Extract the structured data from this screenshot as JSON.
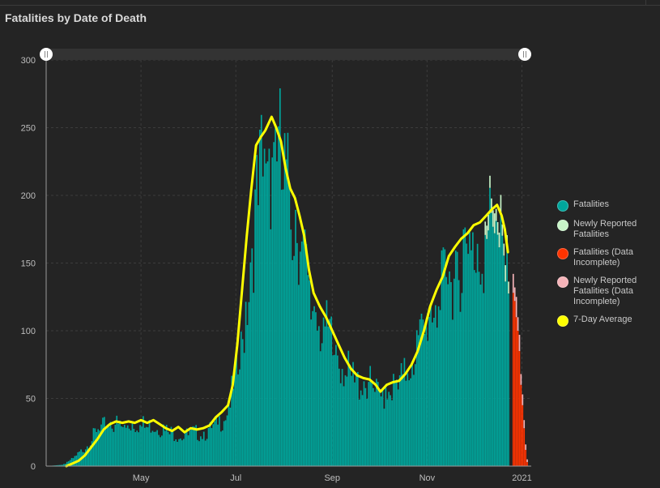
{
  "title": "Fatalities by Date of Death",
  "colors": {
    "fatalities": "#00a69c",
    "newly_reported": "#c8f5c8",
    "incomplete": "#ff3300",
    "newly_reported_incomplete": "#f5b3b8",
    "average": "#ffff00"
  },
  "legend": [
    {
      "label": "Fatalities",
      "color": "#00a69c"
    },
    {
      "label": "Newly Reported Fatalities",
      "color": "#c8f5c8"
    },
    {
      "label": "Fatalities (Data Incomplete)",
      "color": "#ff3300"
    },
    {
      "label": "Newly Reported Fatalities (Data Incomplete)",
      "color": "#f5b3b8"
    },
    {
      "label": "7-Day Average",
      "color": "#ffff00"
    }
  ],
  "chart_data": {
    "type": "bar",
    "title": "Fatalities by Date of Death",
    "x_range": [
      "2020-03-01",
      "2021-01-07"
    ],
    "ylim": [
      0,
      300
    ],
    "y_ticks": [
      0,
      50,
      100,
      150,
      200,
      250,
      300
    ],
    "x_ticks": [
      {
        "label": "May",
        "date": "2020-05-01"
      },
      {
        "label": "Jul",
        "date": "2020-07-01"
      },
      {
        "label": "Sep",
        "date": "2020-09-01"
      },
      {
        "label": "Nov",
        "date": "2020-11-01"
      },
      {
        "label": "2021",
        "date": "2021-01-01"
      }
    ],
    "grid": true,
    "legend_position": "right",
    "series": [
      {
        "name": "Fatalities",
        "points": [
          [
            "2020-03-01",
            0
          ],
          [
            "2020-03-11",
            1
          ],
          [
            "2020-03-18",
            6
          ],
          [
            "2020-03-25",
            14
          ],
          [
            "2020-04-01",
            26
          ],
          [
            "2020-04-08",
            33
          ],
          [
            "2020-04-15",
            34
          ],
          [
            "2020-04-22",
            32
          ],
          [
            "2020-04-29",
            34
          ],
          [
            "2020-05-06",
            33
          ],
          [
            "2020-05-13",
            31
          ],
          [
            "2020-05-20",
            27
          ],
          [
            "2020-05-27",
            24
          ],
          [
            "2020-06-03",
            27
          ],
          [
            "2020-06-10",
            26
          ],
          [
            "2020-06-17",
            31
          ],
          [
            "2020-06-24",
            41
          ],
          [
            "2020-07-01",
            70
          ],
          [
            "2020-07-05",
            100
          ],
          [
            "2020-07-10",
            160
          ],
          [
            "2020-07-13",
            200
          ],
          [
            "2020-07-17",
            235
          ],
          [
            "2020-07-22",
            245
          ],
          [
            "2020-07-27",
            258
          ],
          [
            "2020-08-02",
            225
          ],
          [
            "2020-08-06",
            200
          ],
          [
            "2020-08-12",
            185
          ],
          [
            "2020-08-17",
            130
          ],
          [
            "2020-08-24",
            115
          ],
          [
            "2020-08-31",
            100
          ],
          [
            "2020-09-07",
            82
          ],
          [
            "2020-09-12",
            72
          ],
          [
            "2020-09-19",
            66
          ],
          [
            "2020-09-26",
            64
          ],
          [
            "2020-10-01",
            55
          ],
          [
            "2020-10-06",
            62
          ],
          [
            "2020-10-12",
            64
          ],
          [
            "2020-10-19",
            75
          ],
          [
            "2020-10-26",
            100
          ],
          [
            "2020-11-02",
            120
          ],
          [
            "2020-11-09",
            135
          ],
          [
            "2020-11-16",
            155
          ],
          [
            "2020-11-23",
            168
          ],
          [
            "2020-11-30",
            172
          ],
          [
            "2020-12-07",
            178
          ],
          [
            "2020-12-14",
            188
          ],
          [
            "2020-12-18",
            192
          ],
          [
            "2020-12-21",
            175
          ],
          [
            "2020-12-23",
            150
          ]
        ]
      },
      {
        "name": "Newly Reported Fatalities",
        "points": [
          [
            "2020-12-08",
            12
          ],
          [
            "2020-12-12",
            14
          ],
          [
            "2020-12-16",
            15
          ],
          [
            "2020-12-19",
            12
          ],
          [
            "2020-12-22",
            10
          ],
          [
            "2020-12-25",
            8
          ]
        ]
      },
      {
        "name": "Fatalities (Data Incomplete)",
        "points": [
          [
            "2020-12-26",
            128
          ],
          [
            "2020-12-27",
            122
          ],
          [
            "2020-12-28",
            110
          ],
          [
            "2020-12-29",
            100
          ],
          [
            "2020-12-30",
            85
          ],
          [
            "2020-12-31",
            60
          ],
          [
            "2021-01-01",
            45
          ],
          [
            "2021-01-02",
            28
          ],
          [
            "2021-01-03",
            12
          ],
          [
            "2021-01-04",
            3
          ]
        ]
      },
      {
        "name": "Newly Reported Fatalities (Data Incomplete)",
        "points": [
          [
            "2020-12-26",
            14
          ],
          [
            "2020-12-27",
            10
          ],
          [
            "2020-12-28",
            15
          ],
          [
            "2020-12-29",
            10
          ],
          [
            "2020-12-30",
            12
          ],
          [
            "2020-12-31",
            8
          ],
          [
            "2021-01-01",
            8
          ],
          [
            "2021-01-02",
            6
          ],
          [
            "2021-01-03",
            4
          ],
          [
            "2021-01-04",
            2
          ]
        ]
      },
      {
        "name": "7-Day Average",
        "points": [
          [
            "2020-03-14",
            0
          ],
          [
            "2020-03-18",
            2
          ],
          [
            "2020-03-22",
            4
          ],
          [
            "2020-03-26",
            8
          ],
          [
            "2020-03-30",
            14
          ],
          [
            "2020-04-03",
            20
          ],
          [
            "2020-04-07",
            27
          ],
          [
            "2020-04-11",
            31
          ],
          [
            "2020-04-15",
            33
          ],
          [
            "2020-04-19",
            32
          ],
          [
            "2020-04-23",
            33
          ],
          [
            "2020-04-27",
            32
          ],
          [
            "2020-05-01",
            34
          ],
          [
            "2020-05-05",
            32
          ],
          [
            "2020-05-09",
            34
          ],
          [
            "2020-05-13",
            31
          ],
          [
            "2020-05-17",
            28
          ],
          [
            "2020-05-21",
            26
          ],
          [
            "2020-05-25",
            29
          ],
          [
            "2020-05-29",
            25
          ],
          [
            "2020-06-02",
            28
          ],
          [
            "2020-06-06",
            27
          ],
          [
            "2020-06-10",
            28
          ],
          [
            "2020-06-14",
            30
          ],
          [
            "2020-06-18",
            36
          ],
          [
            "2020-06-22",
            40
          ],
          [
            "2020-06-26",
            45
          ],
          [
            "2020-06-29",
            60
          ],
          [
            "2020-07-02",
            90
          ],
          [
            "2020-07-05",
            130
          ],
          [
            "2020-07-08",
            170
          ],
          [
            "2020-07-11",
            205
          ],
          [
            "2020-07-14",
            237
          ],
          [
            "2020-07-17",
            243
          ],
          [
            "2020-07-20",
            248
          ],
          [
            "2020-07-24",
            258
          ],
          [
            "2020-07-27",
            250
          ],
          [
            "2020-07-30",
            240
          ],
          [
            "2020-08-02",
            220
          ],
          [
            "2020-08-05",
            205
          ],
          [
            "2020-08-08",
            198
          ],
          [
            "2020-08-11",
            185
          ],
          [
            "2020-08-14",
            170
          ],
          [
            "2020-08-17",
            145
          ],
          [
            "2020-08-20",
            128
          ],
          [
            "2020-08-24",
            118
          ],
          [
            "2020-08-28",
            110
          ],
          [
            "2020-09-01",
            100
          ],
          [
            "2020-09-05",
            90
          ],
          [
            "2020-09-09",
            80
          ],
          [
            "2020-09-13",
            72
          ],
          [
            "2020-09-17",
            67
          ],
          [
            "2020-09-21",
            65
          ],
          [
            "2020-09-25",
            64
          ],
          [
            "2020-09-29",
            60
          ],
          [
            "2020-10-02",
            55
          ],
          [
            "2020-10-06",
            60
          ],
          [
            "2020-10-10",
            62
          ],
          [
            "2020-10-14",
            63
          ],
          [
            "2020-10-18",
            68
          ],
          [
            "2020-10-22",
            75
          ],
          [
            "2020-10-26",
            85
          ],
          [
            "2020-10-30",
            100
          ],
          [
            "2020-11-03",
            118
          ],
          [
            "2020-11-07",
            130
          ],
          [
            "2020-11-11",
            140
          ],
          [
            "2020-11-15",
            155
          ],
          [
            "2020-11-19",
            162
          ],
          [
            "2020-11-23",
            168
          ],
          [
            "2020-11-27",
            172
          ],
          [
            "2020-12-01",
            178
          ],
          [
            "2020-12-05",
            180
          ],
          [
            "2020-12-09",
            185
          ],
          [
            "2020-12-13",
            190
          ],
          [
            "2020-12-16",
            193
          ],
          [
            "2020-12-19",
            185
          ],
          [
            "2020-12-21",
            175
          ],
          [
            "2020-12-23",
            158
          ]
        ]
      }
    ]
  }
}
